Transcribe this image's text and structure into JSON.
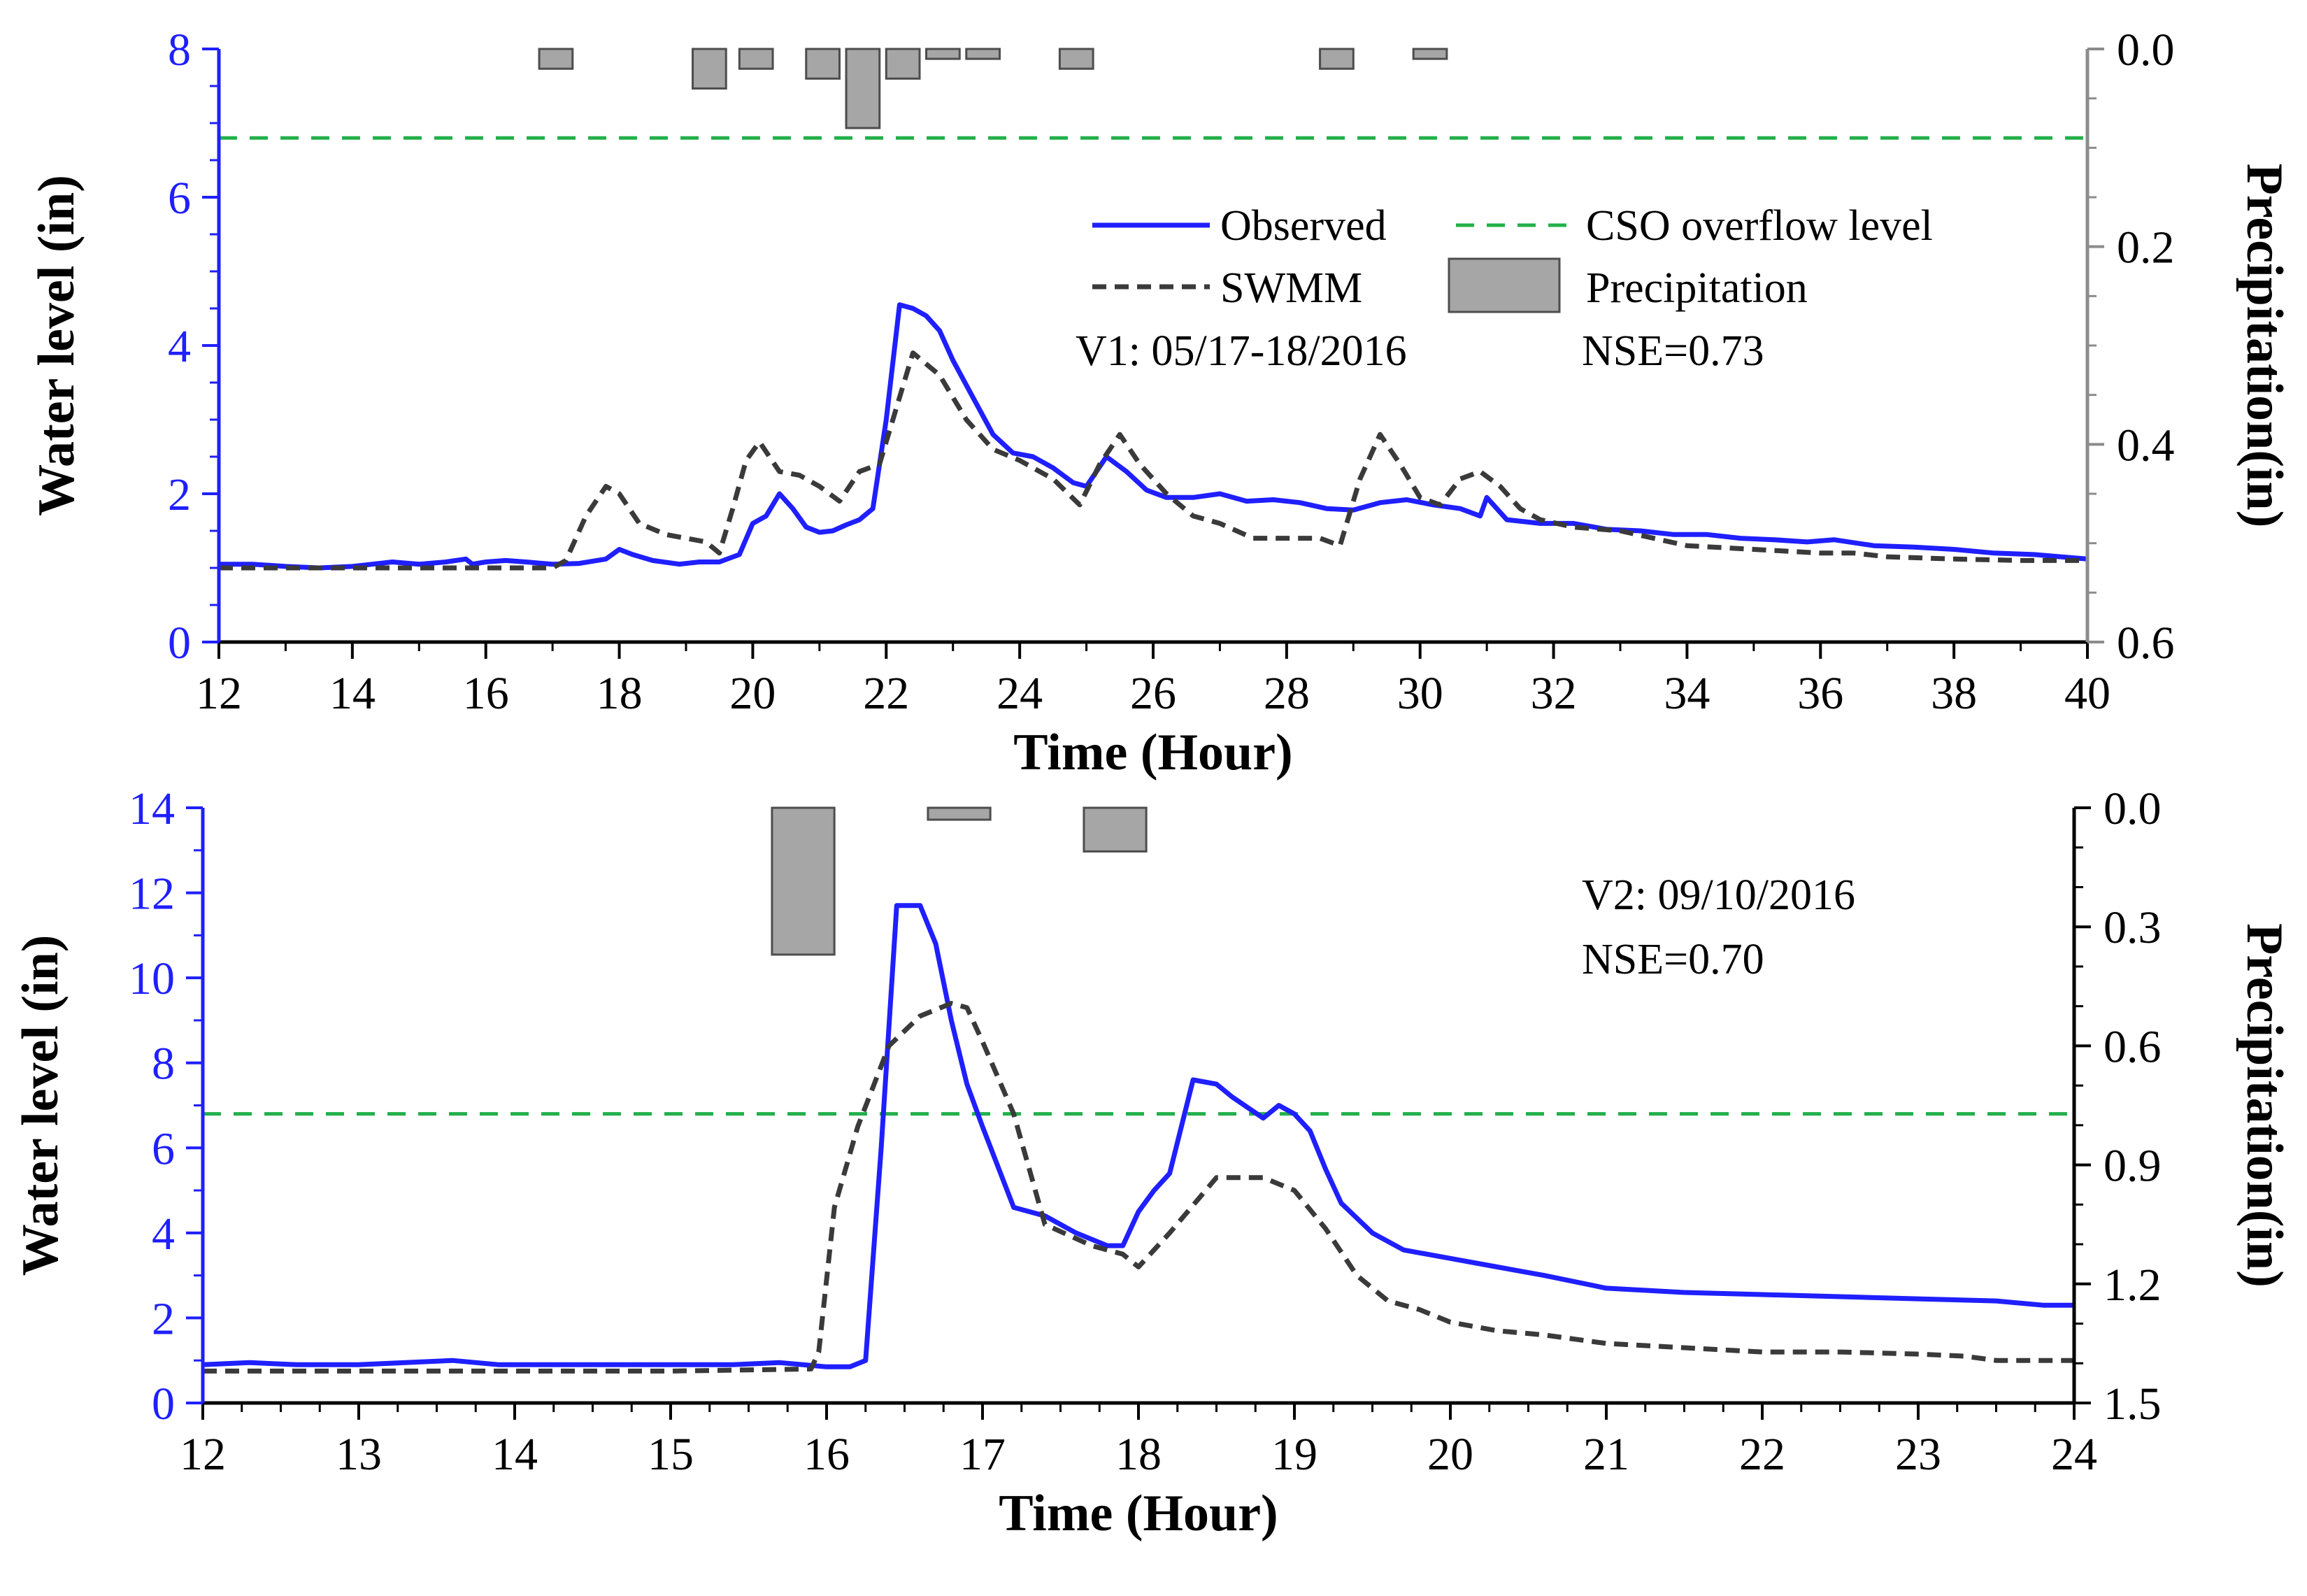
{
  "colors": {
    "observed": "#1f1fff",
    "swmm": "#3a3a3a",
    "cso": "#22b04a",
    "precip_fill": "#a6a6a6",
    "precip_edge": "#4d4d4d",
    "left_axis": "#1f1fff",
    "right_axis_top": "#8c8c8c",
    "right_axis_bottom": "#000000"
  },
  "chart_data": [
    {
      "type": "line",
      "id": "v1",
      "xlabel": "Time (Hour)",
      "ylabel": "Water level (in)",
      "y2label": "Precipitation(in)",
      "xlim": [
        12,
        40
      ],
      "ylim": [
        0,
        8
      ],
      "y2lim": [
        0.0,
        0.6
      ],
      "y2_inverted": true,
      "x_ticks": [
        12,
        14,
        16,
        18,
        20,
        22,
        24,
        26,
        28,
        30,
        32,
        34,
        36,
        38,
        40
      ],
      "y_ticks": [
        0,
        2,
        4,
        6,
        8
      ],
      "y2_ticks": [
        "0.0",
        "0.2",
        "0.4",
        "0.6"
      ],
      "legend": {
        "position": "upper-middle",
        "entries": [
          "Observed",
          "CSO overflow level",
          "SWMM",
          "Precipitation"
        ]
      },
      "annotations": [
        "V1: 05/17-18/2016",
        "NSE=0.73"
      ],
      "cso_level": 6.8,
      "series": [
        {
          "name": "Observed",
          "style": "solid",
          "x": [
            12.0,
            12.5,
            13.0,
            13.5,
            14.0,
            14.3,
            14.6,
            15.0,
            15.4,
            15.7,
            15.8,
            16.0,
            16.3,
            16.6,
            17.0,
            17.4,
            17.8,
            18.0,
            18.2,
            18.5,
            18.9,
            19.2,
            19.5,
            19.8,
            20.0,
            20.2,
            20.4,
            20.6,
            20.8,
            21.0,
            21.2,
            21.4,
            21.6,
            21.8,
            22.0,
            22.2,
            22.4,
            22.6,
            22.8,
            23.0,
            23.3,
            23.6,
            23.9,
            24.2,
            24.5,
            24.8,
            25.0,
            25.3,
            25.6,
            25.9,
            26.2,
            26.6,
            27.0,
            27.4,
            27.8,
            28.2,
            28.6,
            29.0,
            29.4,
            29.8,
            30.2,
            30.6,
            30.9,
            31.0,
            31.3,
            31.8,
            32.3,
            32.8,
            33.3,
            33.8,
            34.3,
            34.8,
            35.3,
            35.8,
            36.2,
            36.8,
            37.4,
            38.0,
            38.6,
            39.2,
            39.6,
            40.0
          ],
          "y": [
            1.05,
            1.05,
            1.02,
            1.0,
            1.02,
            1.05,
            1.08,
            1.05,
            1.08,
            1.12,
            1.05,
            1.08,
            1.1,
            1.08,
            1.05,
            1.06,
            1.12,
            1.25,
            1.18,
            1.1,
            1.05,
            1.08,
            1.08,
            1.18,
            1.6,
            1.7,
            2.0,
            1.8,
            1.55,
            1.48,
            1.5,
            1.58,
            1.65,
            1.8,
            3.0,
            4.55,
            4.5,
            4.4,
            4.2,
            3.8,
            3.3,
            2.8,
            2.55,
            2.5,
            2.35,
            2.15,
            2.1,
            2.5,
            2.3,
            2.05,
            1.95,
            1.95,
            2.0,
            1.9,
            1.92,
            1.88,
            1.8,
            1.78,
            1.88,
            1.92,
            1.85,
            1.8,
            1.7,
            1.95,
            1.65,
            1.6,
            1.6,
            1.52,
            1.5,
            1.45,
            1.45,
            1.4,
            1.38,
            1.35,
            1.38,
            1.3,
            1.28,
            1.25,
            1.2,
            1.18,
            1.15,
            1.12
          ]
        },
        {
          "name": "SWMM",
          "style": "dashed",
          "x": [
            12.0,
            13.0,
            14.0,
            15.0,
            16.0,
            17.0,
            17.2,
            17.5,
            17.8,
            18.0,
            18.3,
            18.7,
            19.0,
            19.3,
            19.5,
            19.7,
            19.9,
            20.1,
            20.4,
            20.7,
            21.0,
            21.3,
            21.6,
            21.9,
            22.1,
            22.4,
            22.8,
            23.2,
            23.6,
            24.0,
            24.5,
            24.9,
            25.2,
            25.5,
            25.8,
            26.2,
            26.6,
            27.0,
            27.5,
            28.0,
            28.5,
            28.8,
            29.1,
            29.4,
            29.7,
            30.0,
            30.3,
            30.6,
            30.9,
            31.2,
            31.5,
            31.8,
            32.3,
            33.0,
            34.0,
            35.0,
            36.0,
            36.5,
            37.0,
            38.0,
            39.0,
            40.0
          ],
          "y": [
            1.0,
            1.0,
            1.0,
            1.0,
            1.0,
            1.0,
            1.1,
            1.7,
            2.1,
            2.0,
            1.6,
            1.45,
            1.4,
            1.35,
            1.2,
            1.8,
            2.45,
            2.7,
            2.3,
            2.25,
            2.1,
            1.9,
            2.3,
            2.4,
            3.0,
            3.9,
            3.6,
            3.0,
            2.6,
            2.45,
            2.2,
            1.85,
            2.4,
            2.8,
            2.4,
            2.0,
            1.7,
            1.6,
            1.4,
            1.4,
            1.4,
            1.3,
            2.2,
            2.8,
            2.4,
            1.95,
            1.85,
            2.2,
            2.3,
            2.1,
            1.8,
            1.65,
            1.55,
            1.5,
            1.3,
            1.25,
            1.2,
            1.2,
            1.15,
            1.12,
            1.1,
            1.1
          ]
        }
      ],
      "precipitation": [
        {
          "x0": 16.8,
          "x1": 17.3,
          "value": 0.02
        },
        {
          "x0": 19.1,
          "x1": 19.6,
          "value": 0.04
        },
        {
          "x0": 19.8,
          "x1": 20.3,
          "value": 0.02
        },
        {
          "x0": 20.8,
          "x1": 21.3,
          "value": 0.03
        },
        {
          "x0": 21.4,
          "x1": 21.9,
          "value": 0.08
        },
        {
          "x0": 22.0,
          "x1": 22.5,
          "value": 0.03
        },
        {
          "x0": 22.6,
          "x1": 23.1,
          "value": 0.01
        },
        {
          "x0": 23.2,
          "x1": 23.7,
          "value": 0.01
        },
        {
          "x0": 24.6,
          "x1": 25.1,
          "value": 0.02
        },
        {
          "x0": 28.5,
          "x1": 29.0,
          "value": 0.02
        },
        {
          "x0": 29.9,
          "x1": 30.4,
          "value": 0.01
        }
      ]
    },
    {
      "type": "line",
      "id": "v2",
      "xlabel": "Time (Hour)",
      "ylabel": "Water level (in)",
      "y2label": "Precipitation(in)",
      "xlim": [
        12,
        24
      ],
      "ylim": [
        0,
        14
      ],
      "y2lim": [
        0.0,
        1.5
      ],
      "y2_inverted": true,
      "x_ticks": [
        12,
        13,
        14,
        15,
        16,
        17,
        18,
        19,
        20,
        21,
        22,
        23,
        24
      ],
      "y_ticks": [
        0,
        2,
        4,
        6,
        8,
        10,
        12,
        14
      ],
      "y2_ticks": [
        "0.0",
        "0.3",
        "0.6",
        "0.9",
        "1.2",
        "1.5"
      ],
      "annotations": [
        "V2: 09/10/2016",
        "NSE=0.70"
      ],
      "cso_level": 6.8,
      "series": [
        {
          "name": "Observed",
          "style": "solid",
          "x": [
            12.0,
            12.3,
            12.6,
            13.0,
            13.3,
            13.6,
            13.9,
            14.2,
            14.6,
            15.0,
            15.4,
            15.7,
            16.0,
            16.15,
            16.25,
            16.35,
            16.45,
            16.6,
            16.7,
            16.8,
            16.9,
            17.0,
            17.2,
            17.4,
            17.6,
            17.8,
            17.9,
            18.0,
            18.1,
            18.2,
            18.35,
            18.5,
            18.6,
            18.8,
            18.9,
            19.0,
            19.1,
            19.2,
            19.3,
            19.5,
            19.7,
            20.0,
            20.3,
            20.6,
            21.0,
            21.5,
            22.0,
            22.5,
            23.0,
            23.5,
            23.8,
            24.0
          ],
          "y": [
            0.9,
            0.95,
            0.9,
            0.9,
            0.95,
            1.0,
            0.9,
            0.9,
            0.9,
            0.9,
            0.9,
            0.95,
            0.85,
            0.85,
            1.0,
            6.0,
            11.7,
            11.7,
            10.8,
            9.0,
            7.5,
            6.5,
            4.6,
            4.4,
            4.0,
            3.7,
            3.7,
            4.5,
            5.0,
            5.4,
            7.6,
            7.5,
            7.2,
            6.7,
            7.0,
            6.8,
            6.4,
            5.5,
            4.7,
            4.0,
            3.6,
            3.4,
            3.2,
            3.0,
            2.7,
            2.6,
            2.55,
            2.5,
            2.45,
            2.4,
            2.3,
            2.3
          ]
        },
        {
          "name": "SWMM",
          "style": "dashed",
          "x": [
            12.0,
            13.0,
            14.0,
            15.0,
            15.9,
            15.95,
            16.05,
            16.2,
            16.4,
            16.6,
            16.8,
            16.9,
            17.0,
            17.2,
            17.4,
            17.7,
            17.9,
            18.0,
            18.2,
            18.5,
            18.8,
            19.0,
            19.2,
            19.4,
            19.6,
            19.8,
            20.0,
            20.3,
            20.6,
            21.0,
            21.5,
            22.0,
            22.5,
            23.0,
            23.3,
            23.5,
            24.0
          ],
          "y": [
            0.75,
            0.75,
            0.75,
            0.75,
            0.8,
            1.2,
            4.6,
            6.5,
            8.4,
            9.1,
            9.4,
            9.3,
            8.5,
            6.8,
            4.2,
            3.7,
            3.5,
            3.2,
            4.0,
            5.3,
            5.3,
            5.0,
            4.1,
            3.0,
            2.4,
            2.2,
            1.9,
            1.7,
            1.6,
            1.4,
            1.3,
            1.2,
            1.2,
            1.15,
            1.1,
            1.0,
            1.0
          ]
        }
      ],
      "precipitation": [
        {
          "x0": 15.65,
          "x1": 16.05,
          "value": 0.37
        },
        {
          "x0": 16.65,
          "x1": 17.05,
          "value": 0.03
        },
        {
          "x0": 17.65,
          "x1": 18.05,
          "value": 0.11
        }
      ]
    }
  ]
}
